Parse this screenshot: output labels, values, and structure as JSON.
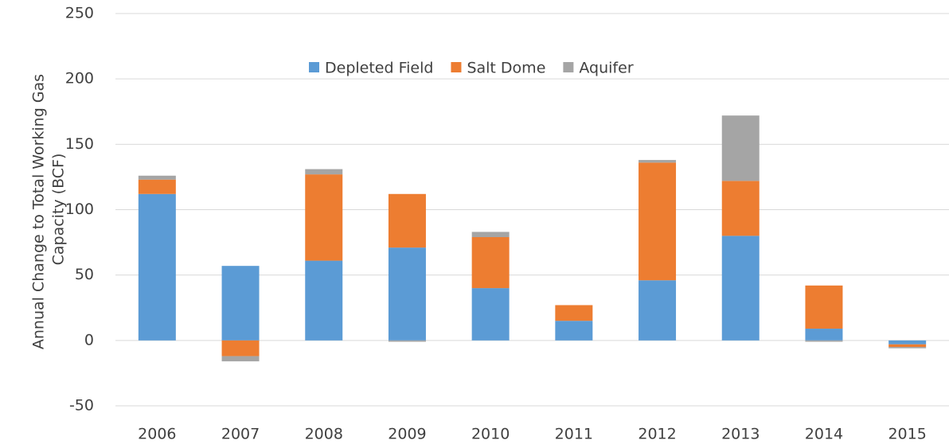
{
  "chart_data": {
    "type": "stacked-bar",
    "ylabel": [
      "Annual Change to Total Working Gas",
      "Capacity (BCF)"
    ],
    "categories": [
      "2006",
      "2007",
      "2008",
      "2009",
      "2010",
      "2011",
      "2012",
      "2013",
      "2014",
      "2015"
    ],
    "series": [
      {
        "name": "Depleted Field",
        "color": "#5b9bd5",
        "values": [
          112,
          57,
          61,
          71,
          40,
          15,
          46,
          80,
          9,
          -3
        ]
      },
      {
        "name": "Salt Dome",
        "color": "#ed7d31",
        "values": [
          11,
          -12,
          66,
          41,
          39,
          12,
          90,
          42,
          33,
          -2
        ]
      },
      {
        "name": "Aquifer",
        "color": "#a5a5a5",
        "values": [
          3,
          -4,
          4,
          -1,
          4,
          0,
          2,
          50,
          -1,
          -1
        ]
      }
    ],
    "ylim": [
      -50,
      250
    ],
    "yticks": [
      -50,
      0,
      50,
      100,
      150,
      200,
      250
    ],
    "grid": true,
    "legend": "top"
  }
}
